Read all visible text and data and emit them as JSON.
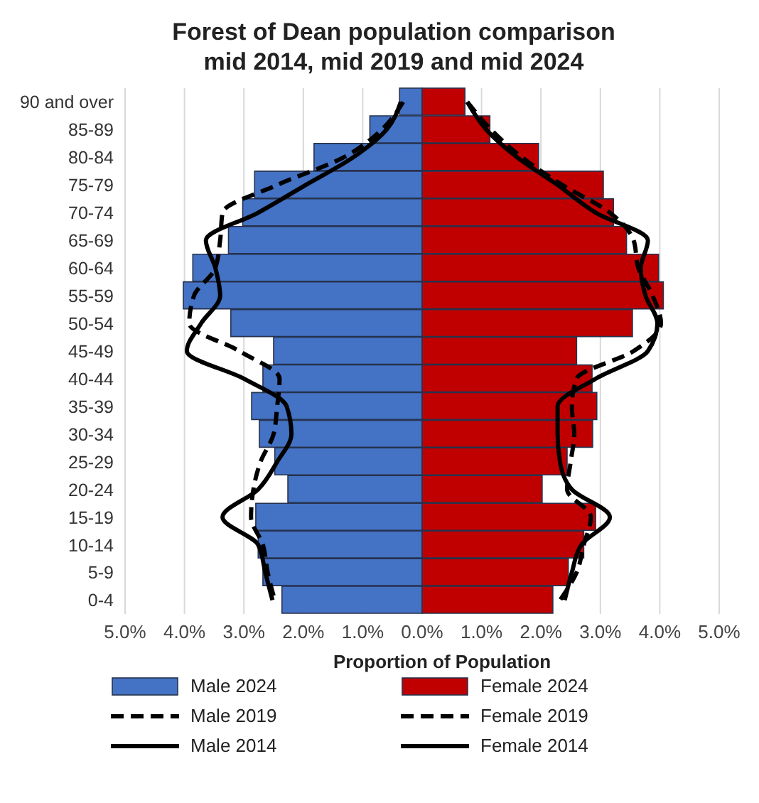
{
  "chart_data": {
    "type": "bar",
    "title": "Forest of Dean population comparison mid 2014, mid 2019 and mid 2024",
    "xlabel": "Proportion of Population",
    "orientation": "horizontal",
    "categories": [
      "90 and over",
      "85-89",
      "80-84",
      "75-79",
      "70-74",
      "65-69",
      "60-64",
      "55-59",
      "50-54",
      "45-49",
      "40-44",
      "35-39",
      "30-34",
      "25-29",
      "20-24",
      "15-19",
      "10-14",
      "5-9",
      "0-4"
    ],
    "series": [
      {
        "name": "Male 2024",
        "color": "#4472c4",
        "values": [
          -0.38,
          -0.88,
          -1.82,
          -2.82,
          -3.02,
          -3.26,
          -3.86,
          -4.02,
          -3.22,
          -2.5,
          -2.68,
          -2.87,
          -2.74,
          -2.48,
          -2.26,
          -2.8,
          -2.76,
          -2.68,
          -2.36
        ]
      },
      {
        "name": "Female 2024",
        "color": "#c00000",
        "values": [
          0.72,
          1.14,
          1.96,
          3.05,
          3.22,
          3.44,
          3.98,
          4.06,
          3.54,
          2.6,
          2.86,
          2.94,
          2.87,
          2.44,
          2.02,
          2.92,
          2.72,
          2.46,
          2.2
        ]
      },
      {
        "name": "Male 2019",
        "type": "line",
        "line_style": "dashed",
        "color": "#000000",
        "values": [
          -0.32,
          -0.68,
          -1.32,
          -2.44,
          -3.36,
          -3.4,
          -3.48,
          -3.84,
          -3.92,
          -3.08,
          -2.4,
          -2.44,
          -2.5,
          -2.72,
          -2.84,
          -2.88,
          -2.68,
          -2.6,
          -2.48
        ]
      },
      {
        "name": "Female 2019",
        "type": "line",
        "line_style": "dashed",
        "color": "#000000",
        "values": [
          0.76,
          1.16,
          1.68,
          2.36,
          3.16,
          3.56,
          3.64,
          3.88,
          4.02,
          3.56,
          2.6,
          2.52,
          2.56,
          2.5,
          2.44,
          2.84,
          2.72,
          2.6,
          2.32
        ]
      },
      {
        "name": "Male 2014",
        "type": "line",
        "line_style": "solid",
        "color": "#000000",
        "values": [
          -0.36,
          -0.6,
          -1.16,
          -1.96,
          -2.76,
          -3.64,
          -3.48,
          -3.4,
          -3.72,
          -3.96,
          -3.0,
          -2.28,
          -2.2,
          -2.44,
          -2.76,
          -3.36,
          -2.76,
          -2.64,
          -2.52
        ]
      },
      {
        "name": "Female 2014",
        "type": "line",
        "line_style": "solid",
        "color": "#000000",
        "values": [
          0.76,
          1.08,
          1.6,
          2.28,
          2.92,
          3.8,
          3.68,
          3.76,
          3.96,
          3.8,
          2.92,
          2.28,
          2.28,
          2.32,
          2.52,
          3.16,
          2.68,
          2.52,
          2.4
        ]
      }
    ],
    "xlim": [
      -5,
      5
    ],
    "xticks": [
      {
        "value": -5,
        "label": "5.0%"
      },
      {
        "value": -4,
        "label": "4.0%"
      },
      {
        "value": -3,
        "label": "3.0%"
      },
      {
        "value": -2,
        "label": "2.0%"
      },
      {
        "value": -1,
        "label": "1.0%"
      },
      {
        "value": 0,
        "label": "0.0%"
      },
      {
        "value": 1,
        "label": "1.0%"
      },
      {
        "value": 2,
        "label": "2.0%"
      },
      {
        "value": 3,
        "label": "3.0%"
      },
      {
        "value": 4,
        "label": "4.0%"
      },
      {
        "value": 5,
        "label": "5.0%"
      }
    ],
    "grid": "x",
    "legend": "bottom",
    "stacked": true,
    "marker": "none"
  }
}
